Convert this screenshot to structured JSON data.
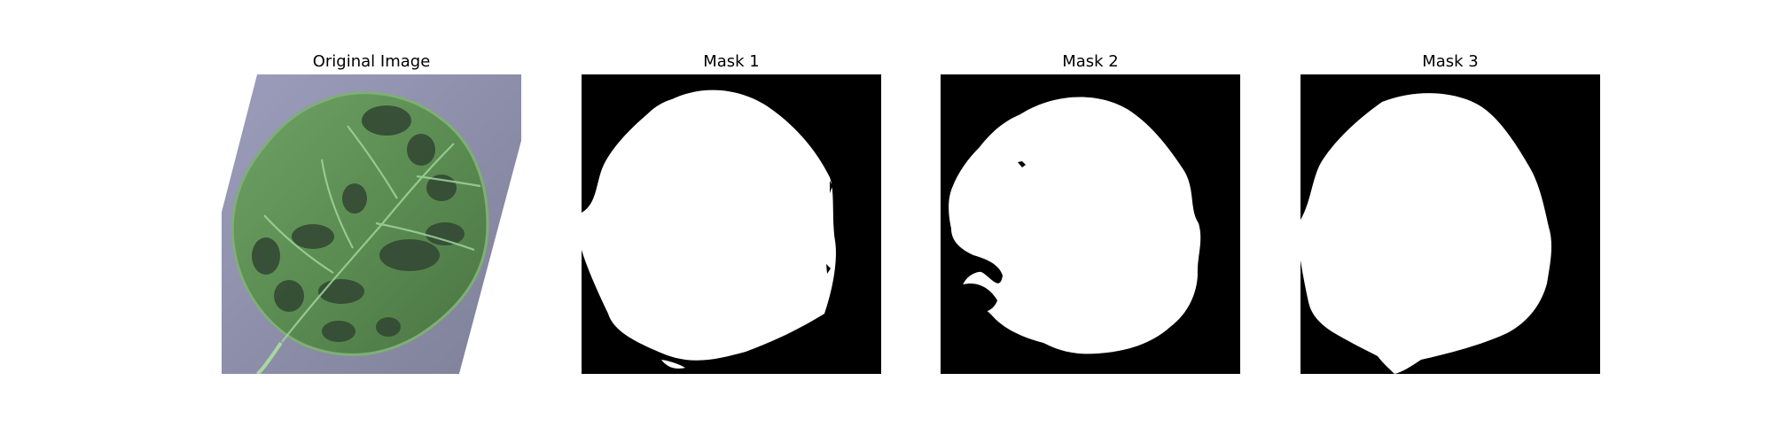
{
  "figure": {
    "panels": [
      {
        "title": "Original Image",
        "kind": "photo",
        "subject": "leaf-image"
      },
      {
        "title": "Mask 1",
        "kind": "mask",
        "subject": "mask-1-image"
      },
      {
        "title": "Mask 2",
        "kind": "mask",
        "subject": "mask-2-image"
      },
      {
        "title": "Mask 3",
        "kind": "mask",
        "subject": "mask-3-image"
      }
    ],
    "colors": {
      "mask_background": "#000000",
      "mask_foreground": "#ffffff",
      "photo_background": "#8a8aa8",
      "leaf_green": "#5f8f57",
      "leaf_dark": "#3f5e39",
      "lesion": "#2c3a28"
    }
  }
}
